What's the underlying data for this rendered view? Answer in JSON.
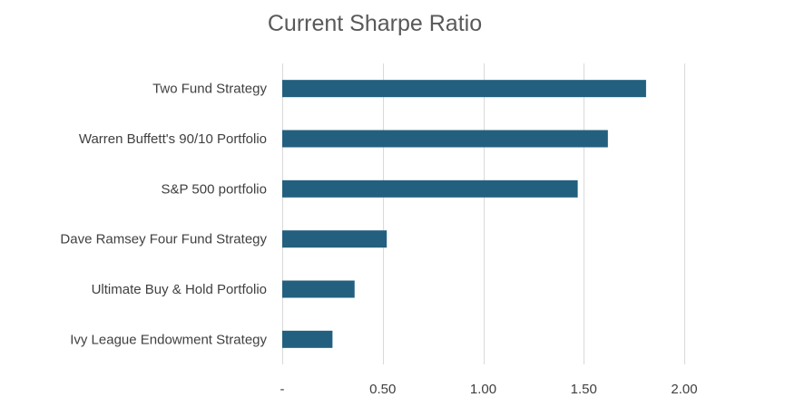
{
  "chart_data": {
    "type": "bar",
    "orientation": "horizontal",
    "title": "Current Sharpe Ratio",
    "xlabel": "",
    "ylabel": "",
    "categories": [
      "Two Fund Strategy",
      "Warren Buffett's 90/10 Portfolio",
      "S&P 500 portfolio",
      "Dave Ramsey Four Fund Strategy",
      "Ultimate Buy & Hold Portfolio",
      "Ivy League Endowment Strategy"
    ],
    "values": [
      1.81,
      1.62,
      1.47,
      0.52,
      0.36,
      0.25
    ],
    "xlim": [
      0,
      2.0
    ],
    "ticks": [
      0,
      0.5,
      1.0,
      1.5,
      2.0
    ],
    "tick_labels": [
      "-",
      "0.50",
      "1.00",
      "1.50",
      "2.00"
    ],
    "grid": true,
    "legend": "none",
    "bar_color": "#23607f",
    "grid_color": "#d9d9d9"
  }
}
